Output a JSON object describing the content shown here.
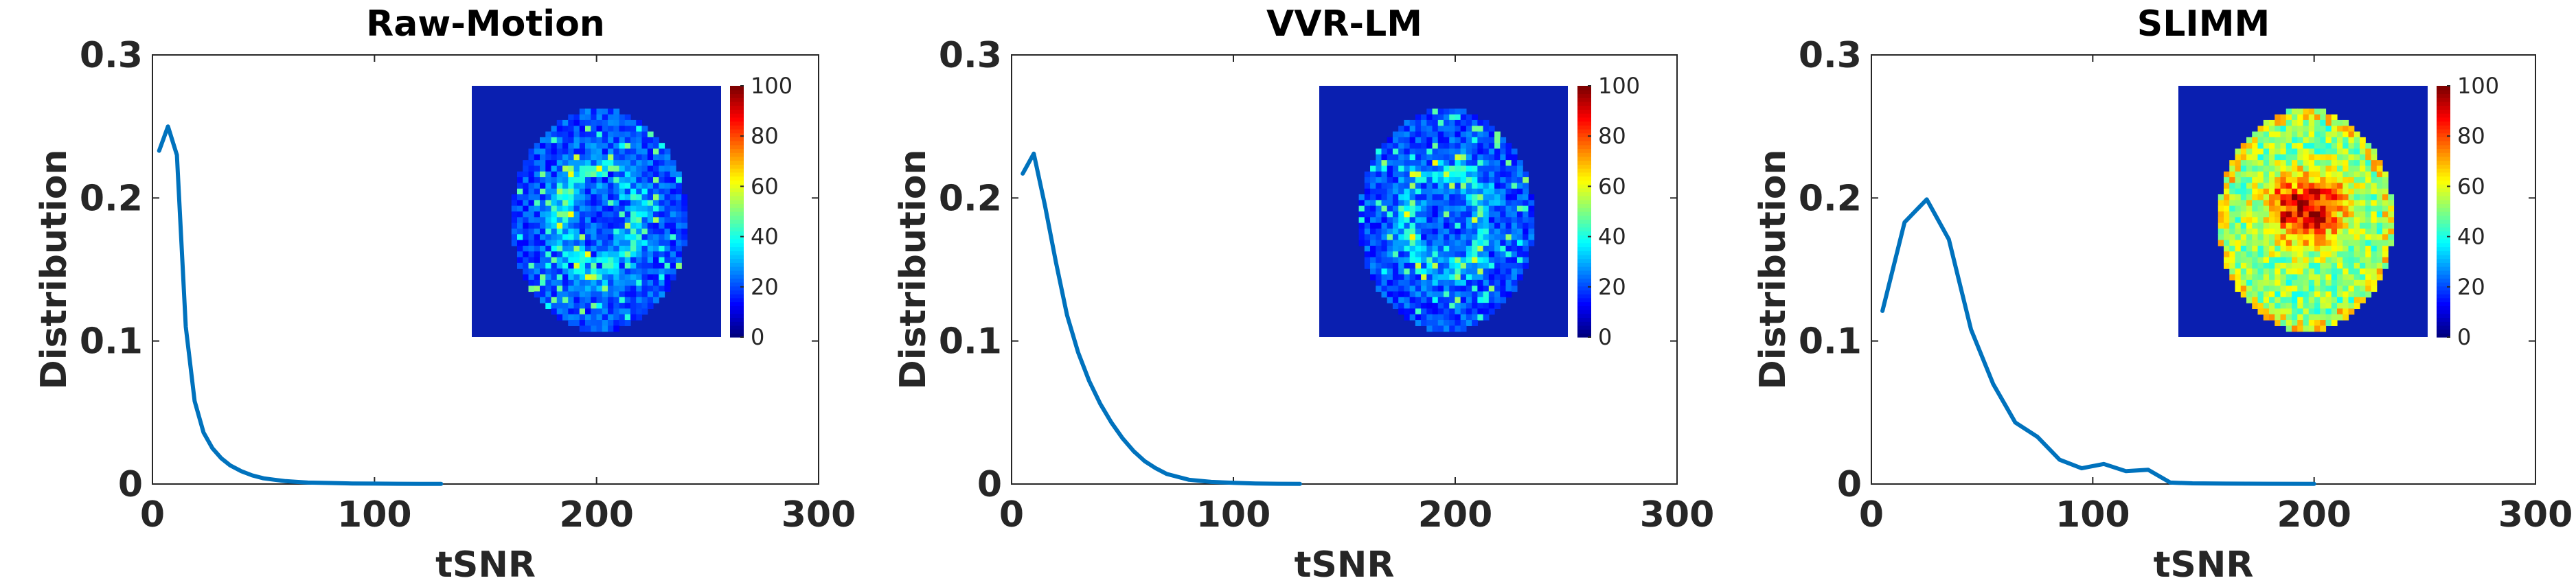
{
  "chart_data": [
    {
      "type": "line",
      "title": "Raw-Motion",
      "xlabel": "tSNR",
      "ylabel": "Distribution",
      "xlim": [
        0,
        300
      ],
      "ylim": [
        0,
        0.3
      ],
      "xticks": [
        "0",
        "100",
        "200",
        "300"
      ],
      "yticks": [
        "0",
        "0.1",
        "0.2",
        "0.3"
      ],
      "series": [
        {
          "x": [
            3,
            7,
            11,
            15,
            19,
            23,
            27,
            31,
            35,
            40,
            45,
            50,
            55,
            60,
            65,
            70,
            80,
            90,
            100,
            110,
            120,
            130
          ],
          "y": [
            0.233,
            0.25,
            0.23,
            0.11,
            0.058,
            0.036,
            0.025,
            0.018,
            0.013,
            0.009,
            0.006,
            0.004,
            0.003,
            0.002,
            0.0015,
            0.001,
            0.0007,
            0.0004,
            0.0003,
            0.0002,
            0.0001,
            0.0001
          ]
        }
      ],
      "inset": {
        "type": "heatmap",
        "colorbar_ticks": [
          "0",
          "20",
          "40",
          "60",
          "80",
          "100"
        ],
        "colorbar_range": [
          0,
          100
        ],
        "level": "low"
      }
    },
    {
      "type": "line",
      "title": "VVR-LM",
      "xlabel": "tSNR",
      "ylabel": "Distribution",
      "xlim": [
        0,
        300
      ],
      "ylim": [
        0,
        0.3
      ],
      "xticks": [
        "0",
        "100",
        "200",
        "300"
      ],
      "yticks": [
        "0",
        "0.1",
        "0.2",
        "0.3"
      ],
      "series": [
        {
          "x": [
            5,
            10,
            15,
            20,
            25,
            30,
            35,
            40,
            45,
            50,
            55,
            60,
            65,
            70,
            75,
            80,
            90,
            100,
            110,
            120,
            130
          ],
          "y": [
            0.217,
            0.231,
            0.195,
            0.155,
            0.118,
            0.092,
            0.072,
            0.056,
            0.043,
            0.032,
            0.023,
            0.016,
            0.011,
            0.007,
            0.005,
            0.003,
            0.0015,
            0.0008,
            0.0004,
            0.0002,
            0.0001
          ]
        }
      ],
      "inset": {
        "type": "heatmap",
        "colorbar_ticks": [
          "0",
          "20",
          "40",
          "60",
          "80",
          "100"
        ],
        "colorbar_range": [
          0,
          100
        ],
        "level": "low"
      }
    },
    {
      "type": "line",
      "title": "SLIMM",
      "xlabel": "tSNR",
      "ylabel": "Distribution",
      "xlim": [
        0,
        300
      ],
      "ylim": [
        0,
        0.3
      ],
      "xticks": [
        "0",
        "100",
        "200",
        "300"
      ],
      "yticks": [
        "0",
        "0.1",
        "0.2",
        "0.3"
      ],
      "series": [
        {
          "x": [
            5,
            15,
            25,
            35,
            45,
            55,
            65,
            75,
            85,
            95,
            105,
            115,
            125,
            135,
            145,
            160,
            180,
            200
          ],
          "y": [
            0.121,
            0.183,
            0.199,
            0.171,
            0.108,
            0.07,
            0.043,
            0.033,
            0.017,
            0.011,
            0.014,
            0.009,
            0.01,
            0.001,
            0.0005,
            0.0003,
            0.0002,
            0.0001
          ]
        }
      ],
      "inset": {
        "type": "heatmap",
        "colorbar_ticks": [
          "0",
          "20",
          "40",
          "60",
          "80",
          "100"
        ],
        "colorbar_range": [
          0,
          100
        ],
        "level": "high"
      }
    }
  ]
}
